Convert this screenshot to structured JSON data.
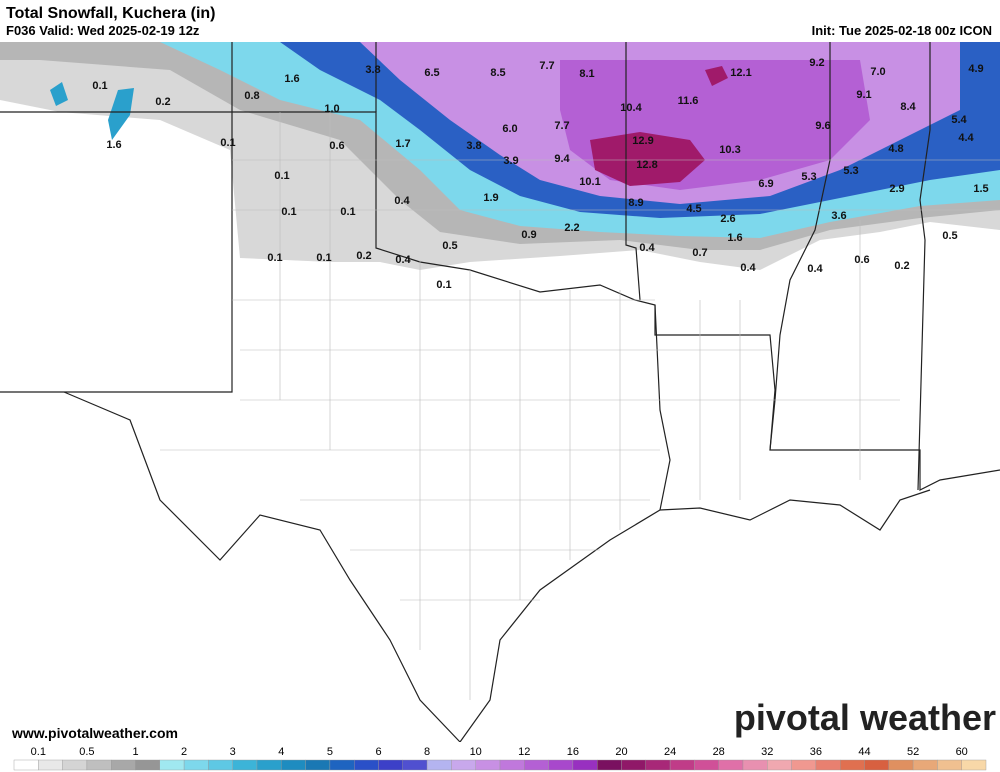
{
  "header": {
    "title": "Total Snowfall, Kuchera (in)",
    "valid": "F036 Valid: Wed 2025-02-19 12z",
    "init": "Init: Tue 2025-02-18 00z ICON"
  },
  "map_labels": [
    "0.1",
    "0.2",
    "1.6",
    "0.8",
    "1.6",
    "3.8",
    "6.5",
    "8.5",
    "7.7",
    "8.1",
    "12.1",
    "9.2",
    "7.0",
    "4.9",
    "0.1",
    "1.0",
    "0.6",
    "1.7",
    "3.8",
    "6.0",
    "7.7",
    "10.4",
    "11.6",
    "9.1",
    "8.4",
    "5.4",
    "9.6",
    "4.4",
    "12.9",
    "10.3",
    "4.8",
    "3.9",
    "9.4",
    "12.8",
    "5.3",
    "5.3",
    "10.1",
    "6.9",
    "2.9",
    "1.5",
    "0.1",
    "0.1",
    "0.1",
    "0.4",
    "1.9",
    "8.9",
    "4.5",
    "2.6",
    "3.6",
    "2.2",
    "0.9",
    "1.6",
    "0.5",
    "0.4",
    "0.7",
    "0.5",
    "0.1",
    "0.1",
    "0.2",
    "0.4",
    "0.4",
    "0.4",
    "0.6",
    "0.2",
    "0.1"
  ],
  "footer": {
    "website": "www.pivotalweather.com",
    "logo": "pivotal weather"
  },
  "legend": {
    "ticks": [
      "0.1",
      "0.5",
      "1",
      "2",
      "3",
      "4",
      "5",
      "6",
      "8",
      "10",
      "12",
      "16",
      "20",
      "24",
      "28",
      "32",
      "36",
      "44",
      "52",
      "60"
    ],
    "colors": [
      "#ffffff",
      "#e8e8e8",
      "#d4d4d4",
      "#bfbfbf",
      "#a8a8a8",
      "#969696",
      "#a0e8f0",
      "#7dd8ec",
      "#5ec8e4",
      "#3cb4d8",
      "#2aa0cc",
      "#1e8cc0",
      "#1a78b4",
      "#1e64c0",
      "#2a50c8",
      "#3c40c8",
      "#5050d0",
      "#b4b4f0",
      "#c8a8ec",
      "#c890e4",
      "#c078dc",
      "#b460d4",
      "#a848cc",
      "#9830c0",
      "#7a1060",
      "#901868",
      "#a82878",
      "#c03c88",
      "#d05098",
      "#e070a8",
      "#e890b0",
      "#f0a8b0",
      "#f09890",
      "#e88070",
      "#e07050",
      "#d86040",
      "#e09060",
      "#e8a878",
      "#f0c090",
      "#f8d8a8"
    ]
  }
}
